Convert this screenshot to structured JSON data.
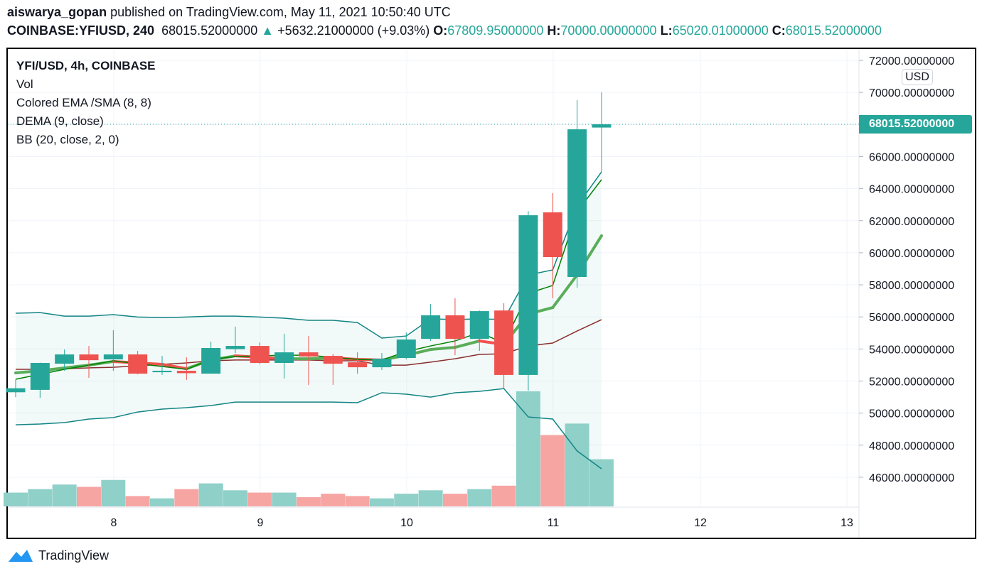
{
  "header": {
    "author": "aiswarya_gopan",
    "published_text": "published on TradingView.com, May 11, 2021 10:50:40 UTC",
    "symbol": "COINBASE:YFIUSD, 240",
    "last": "68015.52000000",
    "change": "+5632.21000000 (+9.03%)",
    "o_label": "O:",
    "o_value": "67809.95000000",
    "h_label": "H:",
    "h_value": "70000.00000000",
    "l_label": "L:",
    "l_value": "65020.01000000",
    "c_label": "C:",
    "c_value": "68015.52000000"
  },
  "legend": [
    "YFI/USD, 4h, COINBASE",
    "Vol",
    "Colored EMA /SMA (8, 8)",
    "DEMA (9, close)",
    "BB (20, close, 2, 0)"
  ],
  "currency_badge": "USD",
  "last_price_label": "68015.52000000",
  "brand": "TradingView",
  "colors": {
    "up": "#26a69a",
    "down": "#ef5350",
    "vol_up": "#8fd0c9",
    "vol_down": "#f6a5a3",
    "bb": "#138484",
    "basis": "#8b2e2e",
    "ema": "#5aad5a",
    "dema": "#008000"
  },
  "chart_data": {
    "type": "candlestick",
    "title": "YFI/USD, 4h, COINBASE",
    "ylim": [
      44000,
      72000
    ],
    "y_ticks": [
      "72000.00000000",
      "70000.00000000",
      "66000.00000000",
      "64000.00000000",
      "62000.00000000",
      "60000.00000000",
      "58000.00000000",
      "56000.00000000",
      "54000.00000000",
      "52000.00000000",
      "50000.00000000",
      "48000.00000000",
      "46000.00000000"
    ],
    "x_ticks": [
      "8",
      "9",
      "10",
      "11",
      "12",
      "13"
    ],
    "candles": [
      [
        51300,
        52100,
        51000,
        51550
      ],
      [
        51450,
        53150,
        50950,
        53130
      ],
      [
        53080,
        53970,
        52640,
        53660
      ],
      [
        53660,
        54190,
        52200,
        53300
      ],
      [
        53350,
        55170,
        52640,
        53660
      ],
      [
        53660,
        53880,
        52420,
        52460
      ],
      [
        52550,
        53570,
        52380,
        52640
      ],
      [
        52640,
        53480,
        52070,
        52490
      ],
      [
        52460,
        54460,
        52460,
        54060
      ],
      [
        53990,
        55390,
        53750,
        54190
      ],
      [
        54190,
        54410,
        53040,
        53130
      ],
      [
        53130,
        54950,
        52150,
        53790
      ],
      [
        53790,
        54810,
        51750,
        53530
      ],
      [
        53570,
        53700,
        51760,
        53080
      ],
      [
        53170,
        53790,
        52460,
        52860
      ],
      [
        52860,
        53750,
        52690,
        53390
      ],
      [
        53440,
        55030,
        53350,
        54590
      ],
      [
        54630,
        56800,
        54500,
        56100
      ],
      [
        56100,
        57160,
        53610,
        54630
      ],
      [
        54630,
        56400,
        53880,
        56360
      ],
      [
        56400,
        56850,
        51530,
        52380
      ],
      [
        52380,
        62600,
        51400,
        62340
      ],
      [
        62520,
        63720,
        57160,
        59730
      ],
      [
        58490,
        69520,
        57820,
        67700
      ],
      [
        67810,
        70000,
        65020,
        68015.52
      ]
    ],
    "volume_relative": [
      0.12,
      0.15,
      0.19,
      0.17,
      0.23,
      0.09,
      0.07,
      0.15,
      0.2,
      0.14,
      0.12,
      0.12,
      0.08,
      0.11,
      0.09,
      0.07,
      0.11,
      0.14,
      0.11,
      0.15,
      0.18,
      1.0,
      0.62,
      0.72,
      0.41
    ],
    "bb_upper": [
      56230,
      56270,
      56050,
      56050,
      56140,
      55990,
      55960,
      55990,
      56050,
      56050,
      55990,
      55920,
      55790,
      55790,
      55650,
      54680,
      54810,
      55880,
      55830,
      55880,
      55830,
      58620,
      58930,
      62920,
      65040
    ],
    "bb_lower": [
      49270,
      49320,
      49410,
      49630,
      49720,
      50070,
      50250,
      50340,
      50470,
      50690,
      50690,
      50690,
      50690,
      50690,
      50650,
      51270,
      51180,
      51000,
      51270,
      51360,
      51530,
      49760,
      49630,
      47640,
      46530
    ],
    "bb_basis": [
      52730,
      52730,
      52770,
      52820,
      52860,
      52950,
      53040,
      53130,
      53260,
      53310,
      53310,
      53310,
      53310,
      53260,
      53260,
      52990,
      52990,
      53180,
      53390,
      53660,
      53700,
      54190,
      54370,
      55120,
      55830
    ],
    "ema": [
      52510,
      52640,
      52820,
      52990,
      53220,
      53130,
      53040,
      52770,
      53310,
      53570,
      53480,
      53390,
      53390,
      53440,
      53350,
      53310,
      53610,
      53970,
      54100,
      54500,
      54280,
      56190,
      56580,
      58620,
      61060
    ],
    "dema": [
      52110,
      52420,
      52730,
      52990,
      53260,
      53080,
      52910,
      52730,
      53350,
      53530,
      53570,
      53610,
      53610,
      53480,
      53350,
      53310,
      53840,
      54190,
      54500,
      55030,
      54370,
      57470,
      57960,
      62560,
      64560
    ]
  }
}
